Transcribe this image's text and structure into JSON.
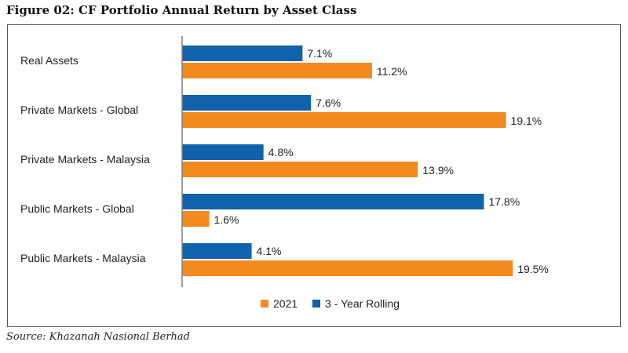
{
  "figure": {
    "title": "Figure 02: CF Portfolio Annual Return by Asset Class",
    "source": "Source: Khazanah Nasional Berhad"
  },
  "colors": {
    "rolling": "#0f62ab",
    "y2021": "#f28a1e",
    "axis": "#7f7f7f",
    "frame": "#555555"
  },
  "chart_data": {
    "type": "bar",
    "orientation": "horizontal",
    "title": "",
    "xlabel": "",
    "ylabel": "",
    "categories": [
      "Real Assets",
      "Private Markets - Global",
      "Private Markets - Malaysia",
      "Public Markets - Global",
      "Public Markets - Malaysia"
    ],
    "series": [
      {
        "name": "3 - Year Rolling",
        "values": [
          7.1,
          7.6,
          4.8,
          17.8,
          4.1
        ],
        "labels": [
          "7.1%",
          "7.6%",
          "4.8%",
          "17.8%",
          "4.1%"
        ]
      },
      {
        "name": "2021",
        "values": [
          11.2,
          19.1,
          13.9,
          1.6,
          19.5
        ],
        "labels": [
          "11.2%",
          "19.1%",
          "13.9%",
          "1.6%",
          "19.5%"
        ]
      }
    ],
    "legend": {
      "position": "bottom",
      "order": [
        "2021",
        "3 - Year Rolling"
      ]
    },
    "grid": false,
    "value_axis_visible": false
  }
}
